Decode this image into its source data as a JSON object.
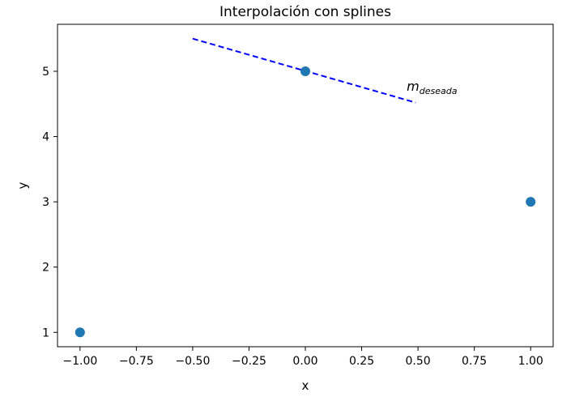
{
  "chart_data": {
    "type": "scatter",
    "title": "Interpolación con splines",
    "xlabel": "x",
    "ylabel": "y",
    "xlim": [
      -1.1,
      1.1
    ],
    "ylim": [
      0.78,
      5.72
    ],
    "xticks": [
      -1.0,
      -0.75,
      -0.5,
      -0.25,
      0.0,
      0.25,
      0.5,
      0.75,
      1.0
    ],
    "xtick_labels": [
      "−1.00",
      "−0.75",
      "−0.50",
      "−0.25",
      "0.00",
      "0.25",
      "0.50",
      "0.75",
      "1.00"
    ],
    "yticks": [
      1,
      2,
      3,
      4,
      5
    ],
    "ytick_labels": [
      "1",
      "2",
      "3",
      "4",
      "5"
    ],
    "grid": false,
    "points": {
      "x": [
        -1.0,
        0.0,
        1.0
      ],
      "y": [
        1,
        5,
        3
      ],
      "color": "#1f77b4"
    },
    "slope_line": {
      "x": [
        -0.5,
        0.49
      ],
      "y": [
        5.5,
        4.52
      ],
      "color": "#0000ff",
      "style": "dashed"
    },
    "annotation": {
      "text": "m",
      "subscript": "deseada",
      "x": 0.45,
      "y": 4.7
    }
  }
}
